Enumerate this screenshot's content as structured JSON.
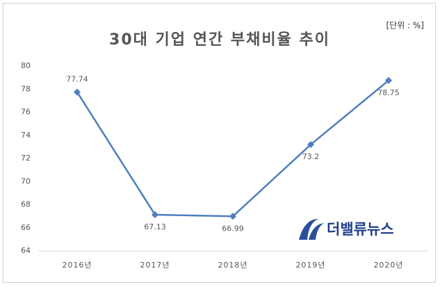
{
  "chart_data": {
    "type": "line",
    "title": "30대 기업 연간 부채비율 추이",
    "unit_label": "[단위 : %]",
    "categories": [
      "2016년",
      "2017년",
      "2018년",
      "2019년",
      "2020년"
    ],
    "series": [
      {
        "name": "부채비율",
        "color": "#4f7dbd",
        "values": [
          77.74,
          67.13,
          66.99,
          73.2,
          78.75
        ]
      }
    ],
    "ylim": [
      64,
      80
    ],
    "yticks": [
      64,
      66,
      68,
      70,
      72,
      74,
      76,
      78,
      80
    ],
    "grid": false,
    "watermark": "더밸류뉴스"
  }
}
